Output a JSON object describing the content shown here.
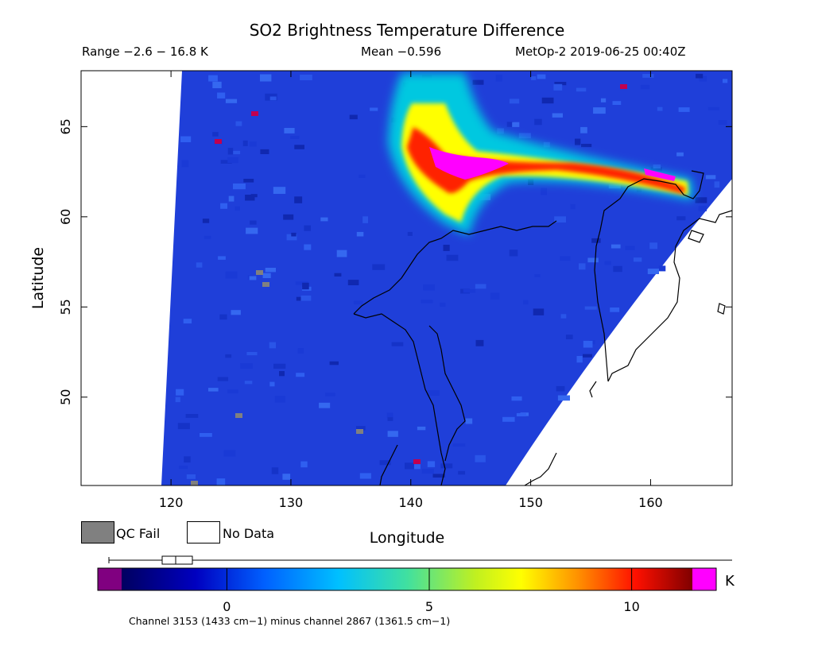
{
  "chart_data": {
    "type": "heatmap",
    "title": "SO2 Brightness Temperature Difference",
    "subtitle": {
      "range": "Range −2.6 − 16.8 K",
      "mean": "Mean −0.596",
      "satellite_time": "MetOp-2 2019-06-25 00:40Z"
    },
    "xlabel": "Longitude",
    "ylabel": "Latitude",
    "xlim": [
      112.5,
      166.8
    ],
    "ylim": [
      45.1,
      68.1
    ],
    "x_ticks": [
      120,
      130,
      140,
      150,
      160
    ],
    "y_ticks": [
      50,
      55,
      60,
      65
    ],
    "legend": [
      {
        "label": "QC Fail",
        "color": "#808080"
      },
      {
        "label": "No Data",
        "color": "#ffffff"
      }
    ],
    "colorbar": {
      "unit": "K",
      "ticks": [
        0,
        5,
        10
      ],
      "range": [
        -2.6,
        11.5
      ],
      "below_color": "#800080",
      "above_color": "#ff00ff",
      "note": "Channel 3153 (1433 cm−1) minus channel 2867 (1361.5 cm−1)"
    },
    "boxplot": {
      "q1": -1.9,
      "median": -1.3,
      "q3": -0.8,
      "whisker_low": -2.6,
      "whisker_high": 16.8
    }
  },
  "colors": {
    "background_field": "#1f3fd9",
    "plume_core": "#ff00ff",
    "no_data": "#ffffff",
    "qc_fail": "#808080"
  }
}
